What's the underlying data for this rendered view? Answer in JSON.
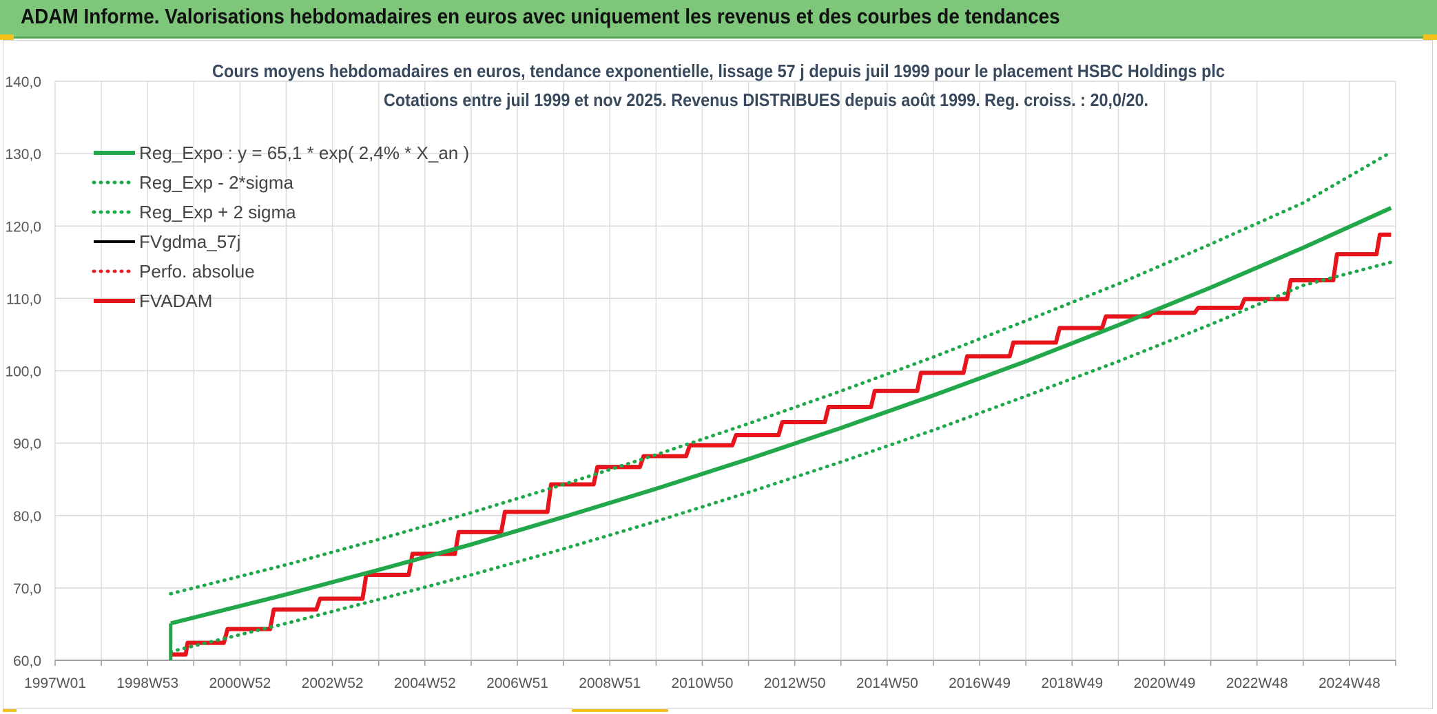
{
  "header": {
    "title": "ADAM Informe. Valorisations hebdomadaires en euros avec uniquement les revenus et des courbes de tendances"
  },
  "colors": {
    "header_bg": "#7ec77a",
    "reg_green": "#22a84a",
    "sigma_green": "#1fa84a",
    "fv_black": "#000000",
    "perfo_red": "#e3262a",
    "fvadam_red": "#e8141c"
  },
  "chart_data": {
    "type": "line",
    "title": "Cours moyens hebdomadaires en euros, tendance exponentielle, lissage 57 j depuis juil 1999 pour le placement HSBC Holdings plc",
    "subtitle": "Cotations entre juil 1999 et nov 2025. Revenus DISTRIBUES depuis août 1999. Reg. croiss. : 20,0/20.",
    "xlabel": "",
    "ylabel": "",
    "ylim": [
      60,
      140
    ],
    "yticks": [
      "60,0",
      "70,0",
      "80,0",
      "90,0",
      "100,0",
      "110,0",
      "120,0",
      "130,0",
      "140,0"
    ],
    "xticks": [
      "1997W01",
      "1998W53",
      "2000W52",
      "2002W52",
      "2004W52",
      "2006W51",
      "2008W51",
      "2010W50",
      "2012W50",
      "2014W50",
      "2016W49",
      "2018W49",
      "2020W49",
      "2022W48",
      "2024W48"
    ],
    "xlim": [
      1997.0,
      2026.0
    ],
    "grid": true,
    "legend_position": "top-left",
    "series": [
      {
        "name": "Reg_Expo : y = 65,1 * exp( 2,4% *  X_an )",
        "style": "solid-thick",
        "color": "#22a84a",
        "x": [
          1999.5,
          2002.0,
          2004.0,
          2006.0,
          2008.0,
          2010.0,
          2012.0,
          2014.0,
          2016.0,
          2018.0,
          2020.0,
          2022.0,
          2024.0,
          2025.9
        ],
        "y": [
          65.1,
          69.1,
          72.5,
          76.0,
          79.8,
          83.7,
          87.8,
          92.1,
          96.6,
          101.3,
          106.3,
          111.5,
          117.0,
          122.5
        ]
      },
      {
        "name": "Reg_Exp - 2*sigma",
        "style": "dotted",
        "color": "#1fa84a",
        "x": [
          1999.5,
          2002.0,
          2004.0,
          2006.0,
          2008.0,
          2010.0,
          2012.0,
          2014.0,
          2016.0,
          2018.0,
          2020.0,
          2022.0,
          2024.0,
          2025.9
        ],
        "y": [
          61.2,
          65.1,
          68.4,
          71.8,
          75.4,
          79.2,
          83.2,
          87.4,
          91.8,
          96.5,
          101.3,
          106.4,
          111.8,
          115.0
        ]
      },
      {
        "name": "Reg_Exp + 2 sigma",
        "style": "dotted",
        "color": "#1fa84a",
        "x": [
          1999.5,
          2002.0,
          2004.0,
          2006.0,
          2008.0,
          2010.0,
          2012.0,
          2014.0,
          2016.0,
          2018.0,
          2020.0,
          2022.0,
          2024.0,
          2025.9
        ],
        "y": [
          69.2,
          73.2,
          76.7,
          80.4,
          84.3,
          88.4,
          92.7,
          97.2,
          101.9,
          106.9,
          112.0,
          117.5,
          123.2,
          130.2
        ]
      },
      {
        "name": "FVgdma_57j",
        "style": "solid",
        "color": "#000000",
        "x": [
          1999.5,
          2000.0,
          2001.0,
          2002.0,
          2003.0,
          2004.0,
          2005.0,
          2006.0,
          2007.0,
          2008.0,
          2009.0,
          2010.0,
          2011.0,
          2012.0,
          2013.0,
          2014.0,
          2015.0,
          2016.0,
          2017.0,
          2018.0,
          2019.0,
          2020.0,
          2021.0,
          2022.0,
          2023.0,
          2024.0,
          2025.0,
          2025.9
        ],
        "y": [
          60.9,
          62.5,
          64.4,
          67.1,
          68.6,
          71.9,
          74.8,
          77.8,
          80.6,
          84.4,
          86.8,
          88.3,
          89.8,
          91.2,
          93.0,
          95.1,
          97.3,
          99.8,
          102.1,
          104.0,
          106.0,
          107.6,
          108.1,
          108.8,
          110.0,
          112.6,
          116.2,
          118.9
        ]
      },
      {
        "name": "Perfo. absolue",
        "style": "dotted",
        "color": "#e3262a",
        "x": [
          1999.5,
          2000.0,
          2001.0,
          2002.0,
          2003.0,
          2004.0,
          2005.0,
          2006.0,
          2007.0,
          2008.0,
          2009.0,
          2010.0,
          2011.0,
          2012.0,
          2013.0,
          2014.0,
          2015.0,
          2016.0,
          2017.0,
          2018.0,
          2019.0,
          2020.0,
          2021.0,
          2022.0,
          2023.0,
          2024.0,
          2025.0,
          2025.9
        ],
        "y": [
          60.8,
          62.4,
          64.3,
          67.0,
          68.5,
          71.8,
          74.7,
          77.7,
          80.5,
          84.3,
          86.7,
          88.2,
          89.7,
          91.1,
          92.9,
          95.0,
          97.2,
          99.7,
          102.0,
          103.9,
          105.9,
          107.5,
          108.0,
          108.7,
          109.9,
          112.5,
          116.1,
          118.8
        ]
      },
      {
        "name": "FVADAM",
        "style": "solid-thick",
        "color": "#e8141c",
        "x": [
          1999.5,
          2000.0,
          2001.0,
          2002.0,
          2003.0,
          2004.0,
          2005.0,
          2006.0,
          2007.0,
          2008.0,
          2009.0,
          2010.0,
          2011.0,
          2012.0,
          2013.0,
          2014.0,
          2015.0,
          2016.0,
          2017.0,
          2018.0,
          2019.0,
          2020.0,
          2021.0,
          2022.0,
          2023.0,
          2024.0,
          2025.0,
          2025.9
        ],
        "y": [
          60.8,
          62.4,
          64.3,
          67.0,
          68.5,
          71.8,
          74.7,
          77.7,
          80.5,
          84.3,
          86.7,
          88.2,
          89.7,
          91.1,
          92.9,
          95.0,
          97.2,
          99.7,
          102.0,
          103.9,
          105.9,
          107.5,
          108.0,
          108.7,
          109.9,
          112.5,
          116.1,
          118.8
        ]
      }
    ]
  }
}
